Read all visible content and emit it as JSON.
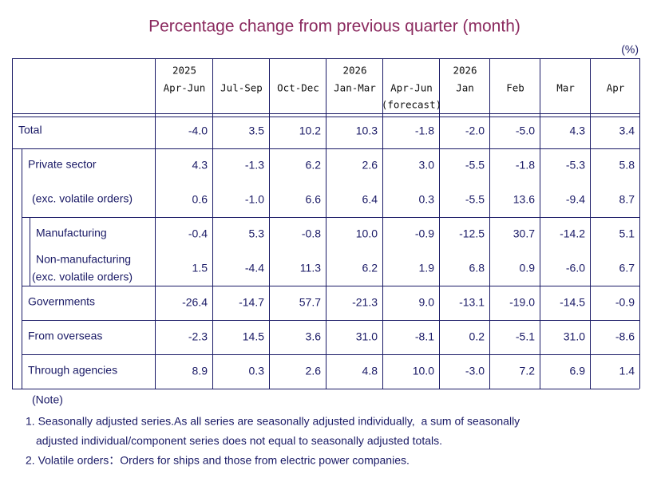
{
  "title": "Percentage change from previous quarter (month)",
  "unit": "(%)",
  "table": {
    "columns": [
      {
        "year": "2025",
        "period": "Apr-Jun"
      },
      {
        "period": "Jul-Sep"
      },
      {
        "period": "Oct-Dec"
      },
      {
        "year": "2026",
        "period": "Jan-Mar"
      },
      {
        "period": "Apr-Jun",
        "note": "(forecast)"
      },
      {
        "year": "2026",
        "period": "Jan"
      },
      {
        "period": "Feb"
      },
      {
        "period": "Mar"
      },
      {
        "period": "Apr"
      }
    ],
    "rows": [
      {
        "label": [
          "Total"
        ],
        "values": [
          "-4.0",
          "3.5",
          "10.2",
          "10.3",
          "-1.8",
          "-2.0",
          "-5.0",
          "4.3",
          "3.4"
        ]
      },
      {
        "label": [
          "Private sector"
        ],
        "values": [
          "4.3",
          "-1.3",
          "6.2",
          "2.6",
          "3.0",
          "-5.5",
          "-1.8",
          "-5.3",
          "5.8"
        ]
      },
      {
        "label": [
          "(exc. volatile orders)"
        ],
        "values": [
          "0.6",
          "-1.0",
          "6.6",
          "6.4",
          "0.3",
          "-5.5",
          "13.6",
          "-9.4",
          "8.7"
        ]
      },
      {
        "label": [
          "Manufacturing"
        ],
        "values": [
          "-0.4",
          "5.3",
          "-0.8",
          "10.0",
          "-0.9",
          "-12.5",
          "30.7",
          "-14.2",
          "5.1"
        ]
      },
      {
        "label": [
          "Non-manufacturing",
          "(exc. volatile orders)"
        ],
        "values": [
          "1.5",
          "-4.4",
          "11.3",
          "6.2",
          "1.9",
          "6.8",
          "0.9",
          "-6.0",
          "6.7"
        ]
      },
      {
        "label": [
          "Governments"
        ],
        "values": [
          "-26.4",
          "-14.7",
          "57.7",
          "-21.3",
          "9.0",
          "-13.1",
          "-19.0",
          "-14.5",
          "-0.9"
        ]
      },
      {
        "label": [
          "From overseas"
        ],
        "values": [
          "-2.3",
          "14.5",
          "3.6",
          "31.0",
          "-8.1",
          "0.2",
          "-5.1",
          "31.0",
          "-8.6"
        ]
      },
      {
        "label": [
          "Through agencies"
        ],
        "values": [
          "8.9",
          "0.3",
          "2.6",
          "4.8",
          "10.0",
          "-3.0",
          "7.2",
          "6.9",
          "1.4"
        ]
      }
    ]
  },
  "notes": {
    "heading": "(Note)",
    "items": [
      [
        "1. Seasonally adjusted series.As all series are seasonally adjusted individually,  a sum of seasonally",
        "adjusted individual/component series does not equal to seasonally adjusted totals."
      ],
      [
        "2. Volatile orders：Orders for ships and those from electric power companies."
      ]
    ]
  }
}
